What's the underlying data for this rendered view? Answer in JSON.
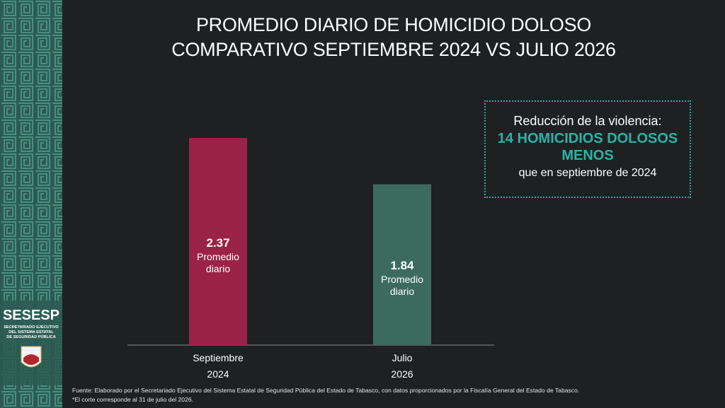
{
  "sidebar": {
    "logo": "SESESP",
    "logo_lines": [
      "SECRETARIADO EJECUTIVO",
      "DEL SISTEMA ESTATAL",
      "DE SEGURIDAD PÚBLICA"
    ]
  },
  "chart_data": {
    "type": "bar",
    "title": "PROMEDIO DIARIO DE HOMICIDIO DOLOSO",
    "subtitle": "COMPARATIVO SEPTIEMBRE 2024 VS JULIO 2026",
    "categories": [
      "Septiembre 2024",
      "Julio 2026"
    ],
    "values": [
      2.37,
      1.84
    ],
    "colors": [
      "#9b2247",
      "#3c6b5e"
    ],
    "value_note": "Promedio diario",
    "annotation": {
      "lead": "Reducción de la violencia:",
      "highlight": "14 HOMICIDIOS DOLOSOS MENOS",
      "tail": "que en septiembre de 2024"
    },
    "source": "Fuente: Elaborado por el Secretariado Ejecutivo del Sistema Estatal de Seguridad Pública del Estado de Tabasco, con datos proporcionados por la Fiscalía General del Estado de Tabasco.",
    "note": "*El corte corresponde al 31 de julio del 2026."
  }
}
